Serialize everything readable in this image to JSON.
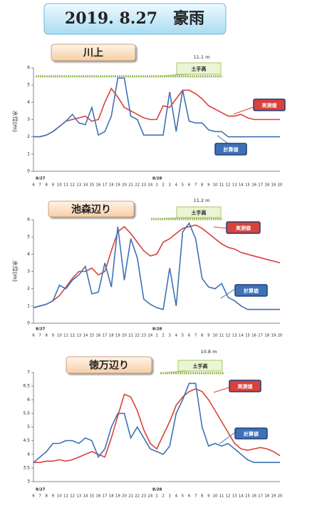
{
  "title": "2019. 8.27　豪雨",
  "chart_data": [
    {
      "type": "line",
      "title": "川上",
      "level_label": "11.1 m",
      "bank_label": "土手高",
      "y_label": "水位(m)",
      "dates": [
        "8/27",
        "8/28"
      ],
      "categories": [
        6,
        7,
        8,
        9,
        10,
        11,
        12,
        13,
        14,
        15,
        16,
        17,
        18,
        19,
        20,
        21,
        22,
        23,
        24,
        1,
        2,
        3,
        4,
        5,
        6,
        7,
        8,
        9,
        10,
        11,
        12,
        13,
        14,
        15,
        16,
        17,
        18,
        19,
        20
      ],
      "ylim": [
        0,
        6
      ],
      "yticks": [
        0,
        1,
        2,
        3,
        4,
        5,
        6
      ],
      "series": [
        {
          "name": "実測値",
          "color": "#d9413b",
          "values": [
            2.0,
            2.0,
            2.1,
            2.3,
            2.6,
            2.9,
            3.0,
            3.1,
            3.2,
            2.9,
            3.0,
            4.0,
            4.8,
            4.3,
            3.7,
            3.5,
            3.3,
            3.1,
            3.0,
            3.0,
            3.8,
            3.7,
            4.2,
            4.7,
            4.7,
            4.5,
            4.2,
            3.8,
            3.6,
            3.4,
            3.2,
            3.2,
            3.3,
            3.1,
            3.0,
            3.0,
            3.0,
            3.0,
            3.0
          ]
        },
        {
          "name": "計算値",
          "color": "#3f72b5",
          "values": [
            2.0,
            2.0,
            2.1,
            2.3,
            2.6,
            2.9,
            3.3,
            2.8,
            2.7,
            3.7,
            2.1,
            2.3,
            3.2,
            5.4,
            5.4,
            3.2,
            3.0,
            2.1,
            2.1,
            2.1,
            2.1,
            4.6,
            2.3,
            4.7,
            2.9,
            2.8,
            2.8,
            2.4,
            2.3,
            2.3,
            2.0,
            2.0,
            2.0,
            2.0,
            2.0,
            2.0,
            2.0,
            2.0,
            2.0
          ]
        }
      ]
    },
    {
      "type": "line",
      "title": "池森辺り",
      "level_label": "11.2 m",
      "bank_label": "土手高",
      "y_label": "水位(m)",
      "dates": [
        "8/27",
        "8/28"
      ],
      "categories": [
        6,
        7,
        8,
        9,
        10,
        11,
        12,
        13,
        14,
        15,
        16,
        17,
        18,
        19,
        20,
        21,
        22,
        23,
        24,
        1,
        2,
        3,
        4,
        5,
        6,
        7,
        8,
        9,
        10,
        11,
        12,
        13,
        14,
        15,
        16,
        17,
        18,
        19,
        20
      ],
      "ylim": [
        0,
        6
      ],
      "yticks": [
        0,
        1,
        2,
        3,
        4,
        5,
        6
      ],
      "series": [
        {
          "name": "実測値",
          "color": "#d9413b",
          "values": [
            0.9,
            1.0,
            1.1,
            1.3,
            1.6,
            2.1,
            2.6,
            3.0,
            3.0,
            3.2,
            2.8,
            3.0,
            4.2,
            5.3,
            5.6,
            5.2,
            4.7,
            4.2,
            3.9,
            4.0,
            4.7,
            4.9,
            5.2,
            5.5,
            5.6,
            5.7,
            5.5,
            5.2,
            4.9,
            4.6,
            4.4,
            4.3,
            4.1,
            4.0,
            3.9,
            3.8,
            3.7,
            3.6,
            3.5
          ]
        },
        {
          "name": "計算値",
          "color": "#3f72b5",
          "values": [
            0.9,
            1.0,
            1.1,
            1.3,
            2.2,
            2.0,
            2.5,
            2.8,
            3.3,
            1.7,
            1.8,
            3.5,
            2.1,
            5.6,
            2.5,
            4.9,
            3.8,
            1.4,
            1.1,
            0.9,
            0.8,
            3.2,
            1.0,
            5.3,
            5.8,
            4.9,
            2.6,
            2.1,
            2.0,
            2.3,
            1.5,
            1.3,
            1.0,
            0.8,
            0.8,
            0.8,
            0.8,
            0.8,
            0.8
          ]
        }
      ]
    },
    {
      "type": "line",
      "title": "徳万辺り",
      "level_label": "10.8 m",
      "bank_label": "土手高",
      "dates": [
        "8/27",
        "8/28"
      ],
      "categories": [
        6,
        7,
        8,
        9,
        10,
        11,
        12,
        13,
        14,
        15,
        16,
        17,
        18,
        19,
        20,
        21,
        22,
        23,
        24,
        1,
        2,
        3,
        4,
        5,
        6,
        7,
        8,
        9,
        10,
        11,
        12,
        13,
        14,
        15,
        16,
        17,
        18,
        19,
        20
      ],
      "ylim": [
        3,
        7
      ],
      "yticks": [
        3,
        3.5,
        4,
        4.5,
        5,
        5.5,
        6,
        6.5,
        7
      ],
      "series": [
        {
          "name": "実測値",
          "color": "#d9413b",
          "values": [
            3.7,
            3.7,
            3.75,
            3.75,
            3.8,
            3.75,
            3.8,
            3.9,
            4.0,
            4.1,
            4.0,
            3.9,
            4.6,
            5.4,
            6.2,
            6.1,
            5.6,
            4.9,
            4.4,
            4.2,
            4.7,
            5.2,
            5.8,
            6.1,
            6.3,
            6.4,
            6.3,
            6.0,
            5.6,
            5.2,
            4.8,
            4.4,
            4.2,
            4.15,
            4.2,
            4.25,
            4.2,
            4.1,
            3.95
          ]
        },
        {
          "name": "計算値",
          "color": "#3f72b5",
          "values": [
            3.7,
            3.9,
            4.1,
            4.4,
            4.4,
            4.5,
            4.5,
            4.4,
            4.6,
            4.5,
            3.9,
            4.2,
            5.0,
            5.5,
            5.5,
            4.6,
            5.0,
            4.6,
            4.2,
            4.1,
            4.0,
            4.3,
            5.5,
            6.0,
            6.6,
            6.6,
            5.0,
            4.3,
            4.4,
            4.3,
            4.4,
            4.2,
            4.0,
            3.8,
            3.7,
            3.7,
            3.7,
            3.7,
            3.7
          ]
        }
      ]
    }
  ]
}
